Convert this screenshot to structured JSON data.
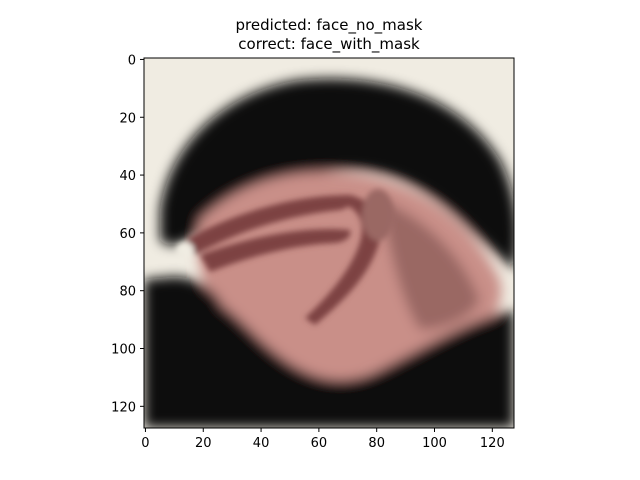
{
  "chart_data": {
    "type": "image",
    "title": "predicted: face_no_mask\ncorrect: face_with_mask",
    "title_lines": [
      "predicted: face_no_mask",
      "correct: face_with_mask"
    ],
    "image_description": "blurred close-up of a person with dark hair wearing a mask pulled down on the face",
    "image_size": [
      128,
      128
    ],
    "xlim": [
      -0.5,
      127.5
    ],
    "ylim": [
      127.5,
      -0.5
    ],
    "x_ticks": [
      0,
      20,
      40,
      60,
      80,
      100,
      120
    ],
    "y_ticks": [
      0,
      20,
      40,
      60,
      80,
      100,
      120
    ],
    "x_tick_labels": [
      "0",
      "20",
      "40",
      "60",
      "80",
      "100",
      "120"
    ],
    "y_tick_labels": [
      "0",
      "20",
      "40",
      "60",
      "80",
      "100",
      "120"
    ],
    "grid": false,
    "legend": "none",
    "colors": {
      "background": "#f0ece2",
      "hair": "#0f0d0d",
      "skin": "#c98f88",
      "skin_shadow": "#9a6864",
      "mask": "#7d4343",
      "clothing": "#0a0a0b"
    }
  }
}
